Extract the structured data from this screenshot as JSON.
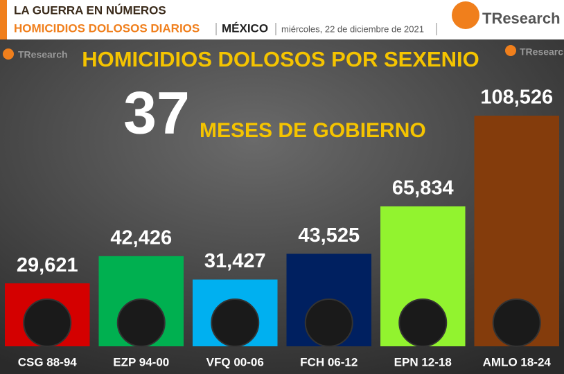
{
  "header": {
    "kicker": "LA GUERRA EN NÚMEROS",
    "topic": "HOMICIDIOS DOLOSOS DIARIOS",
    "place": "MÉXICO",
    "date": "miércoles, 22 de diciembre de 2021",
    "brand": "TResearch"
  },
  "chart_data": {
    "type": "bar",
    "title": "HOMICIDIOS DOLOSOS POR SEXENIO",
    "months": 37,
    "months_label": "MESES DE GOBIERNO",
    "categories": [
      "CSG 88-94",
      "EZP 94-00",
      "VFQ 00-06",
      "FCH 06-12",
      "EPN 12-18",
      "AMLO 18-24"
    ],
    "values": [
      29621,
      42426,
      31427,
      43525,
      65834,
      108526
    ],
    "value_labels": [
      "29,621",
      "42,426",
      "31,427",
      "43,525",
      "65,834",
      "108,526"
    ],
    "colors": [
      "#d40000",
      "#00b050",
      "#00b0f0",
      "#002060",
      "#92f32f",
      "#843c0c"
    ]
  }
}
